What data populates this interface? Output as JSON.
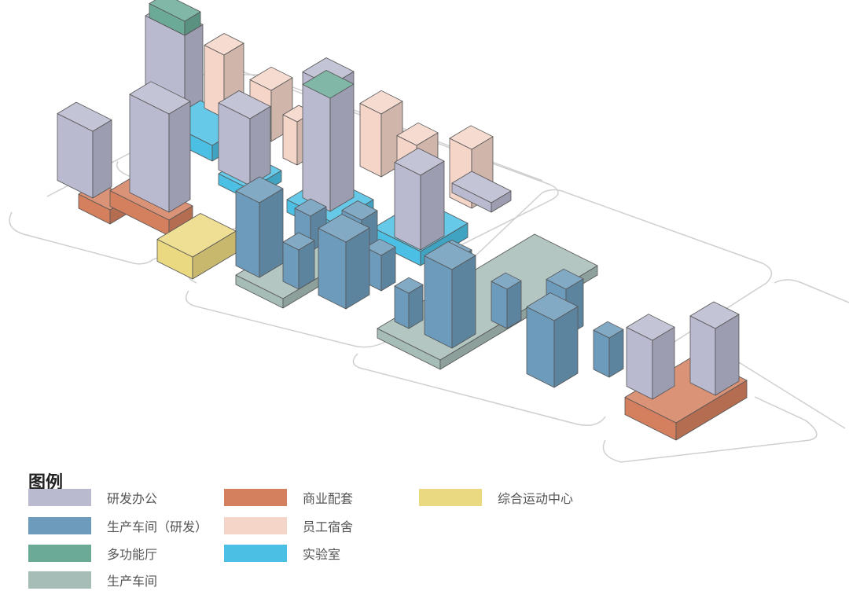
{
  "legend": {
    "title": "图例",
    "items": [
      {
        "key": "office",
        "label": "研发办公",
        "color": "#b9b9d0"
      },
      {
        "key": "rd_workshop",
        "label": "生产车间（研发）",
        "color": "#6d9bbb"
      },
      {
        "key": "multi_hall",
        "label": "多功能厅",
        "color": "#6aaa96"
      },
      {
        "key": "workshop",
        "label": "生产车间",
        "color": "#a6bcb6"
      },
      {
        "key": "commercial",
        "label": "商业配套",
        "color": "#d4805f"
      },
      {
        "key": "dorm",
        "label": "员工宿舍",
        "color": "#f4d5c8"
      },
      {
        "key": "lab",
        "label": "实验室",
        "color": "#4cc0e4"
      },
      {
        "key": "sports",
        "label": "综合运动中心",
        "color": "#ebd981"
      }
    ]
  }
}
